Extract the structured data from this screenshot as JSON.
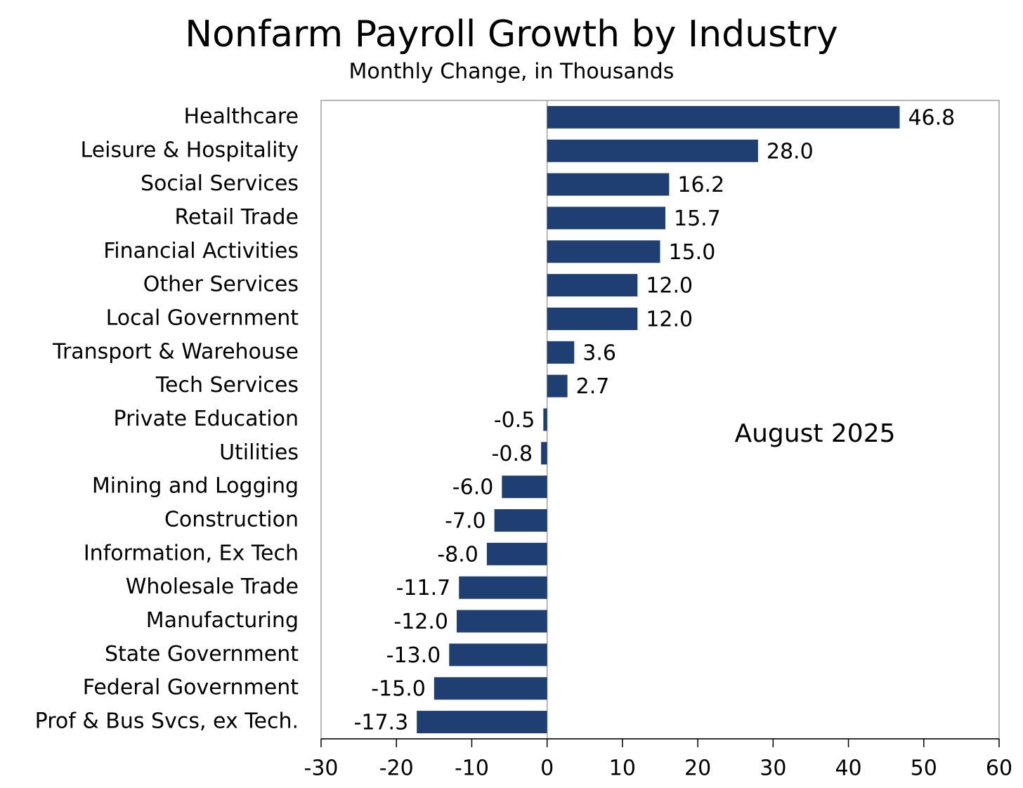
{
  "chart_data": {
    "type": "barh",
    "title": "Nonfarm Payroll Growth by Industry",
    "subtitle": "Monthly Change, in Thousands",
    "annotation": "August 2025",
    "categories": [
      "Healthcare",
      "Leisure & Hospitality",
      "Social Services",
      "Retail Trade",
      "Financial Activities",
      "Other Services",
      "Local Government",
      "Transport & Warehouse",
      "Tech Services",
      "Private Education",
      "Utilities",
      "Mining and Logging",
      "Construction",
      "Information, Ex Tech",
      "Wholesale Trade",
      "Manufacturing",
      "State Government",
      "Federal Government",
      "Prof & Bus Svcs, ex Tech."
    ],
    "values": [
      46.8,
      28,
      16.2,
      15.7,
      15,
      12,
      12,
      3.6,
      2.7,
      -0.5,
      -0.8,
      -6,
      -7,
      -8,
      -11.7,
      -12,
      -13,
      -15,
      -17.3
    ],
    "value_labels": [
      "46.8",
      "28.0",
      "16.2",
      "15.7",
      "15.0",
      "12.0",
      "12.0",
      "3.6",
      "2.7",
      "-0.5",
      "-0.8",
      "-6.0",
      "-7.0",
      "-8.0",
      "-11.7",
      "-12.0",
      "-13.0",
      "-15.0",
      "-17.3"
    ],
    "color": "#1f3f73",
    "xlim": [
      -30,
      60
    ],
    "xticks": [
      -30,
      -20,
      -10,
      0,
      10,
      20,
      30,
      40,
      50,
      60
    ]
  }
}
